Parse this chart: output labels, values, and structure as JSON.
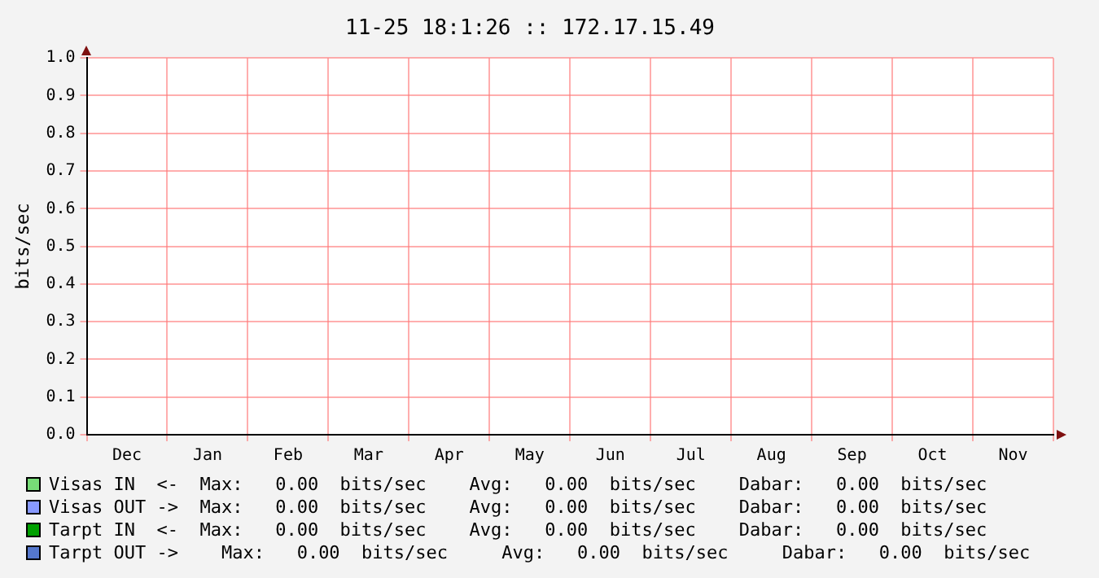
{
  "chart_data": {
    "type": "line",
    "title": "11-25 18:1:26 :: 172.17.15.49",
    "ylabel": "bits/sec",
    "categories": [
      "Dec",
      "Jan",
      "Feb",
      "Mar",
      "Apr",
      "May",
      "Jun",
      "Jul",
      "Aug",
      "Sep",
      "Oct",
      "Nov"
    ],
    "series": [
      {
        "name": "Visas IN  <-",
        "color": "#77dd77",
        "values": [
          null,
          null,
          null,
          null,
          null,
          null,
          null,
          null,
          null,
          null,
          null,
          null
        ]
      },
      {
        "name": "Visas OUT ->",
        "color": "#8899ff",
        "values": [
          null,
          null,
          null,
          null,
          null,
          null,
          null,
          null,
          null,
          null,
          null,
          null
        ]
      },
      {
        "name": "Tarpt IN  <-",
        "color": "#00a000",
        "values": [
          null,
          null,
          null,
          null,
          null,
          null,
          null,
          null,
          null,
          null,
          null,
          null
        ]
      },
      {
        "name": "Tarpt OUT ->",
        "color": "#5577cc",
        "values": [
          null,
          null,
          null,
          null,
          null,
          null,
          null,
          null,
          null,
          null,
          null,
          null
        ]
      }
    ],
    "annotations": [
      "Max:   0.00  bits/sec    Avg:   0.00  bits/sec    Dabar:   0.00  bits/sec",
      "Max:   0.00  bits/sec    Avg:   0.00  bits/sec    Dabar:   0.00  bits/sec",
      "Max:   0.00  bits/sec    Avg:   0.00  bits/sec    Dabar:   0.00  bits/sec",
      "  Max:   0.00  bits/sec     Avg:   0.00  bits/sec     Dabar:   0.00  bits/sec"
    ],
    "ylim": [
      0,
      1
    ],
    "yticks": [
      {
        "value": 0,
        "label": "0.0"
      },
      {
        "value": 0.1,
        "label": "0.1"
      },
      {
        "value": 0.2,
        "label": "0.2"
      },
      {
        "value": 0.3,
        "label": "0.3"
      },
      {
        "value": 0.4,
        "label": "0.4"
      },
      {
        "value": 0.5,
        "label": "0.5"
      },
      {
        "value": 0.6,
        "label": "0.6"
      },
      {
        "value": 0.7,
        "label": "0.7"
      },
      {
        "value": 0.8,
        "label": "0.8"
      },
      {
        "value": 0.9,
        "label": "0.9"
      },
      {
        "value": 1,
        "label": "1.0"
      }
    ],
    "grid": true,
    "legend": "bottom"
  }
}
